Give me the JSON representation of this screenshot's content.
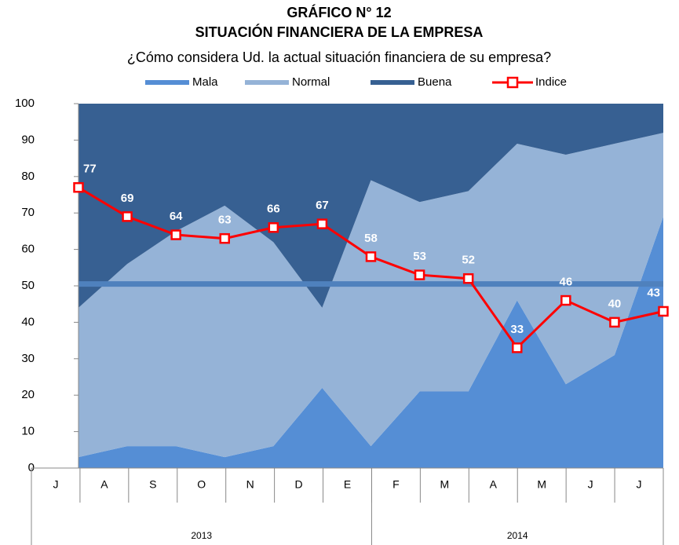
{
  "chart_data": {
    "type": "stacked_area_line",
    "title": "GRÁFICO N° 12",
    "subtitle": "SITUACIÓN FINANCIERA DE LA EMPRESA",
    "question": "¿Cómo considera Ud. la actual situación financiera de su empresa?",
    "categories": [
      "J",
      "A",
      "S",
      "O",
      "N",
      "D",
      "E",
      "F",
      "M",
      "A",
      "M",
      "J",
      "J"
    ],
    "x_groups": [
      {
        "label": "2013",
        "span": 7
      },
      {
        "label": "2014",
        "span": 6
      }
    ],
    "series": [
      {
        "name": "Mala",
        "color": "#558ed5",
        "values": [
          3,
          6,
          6,
          3,
          6,
          22,
          6,
          21,
          21,
          46,
          23,
          31,
          69
        ]
      },
      {
        "name": "Normal",
        "color": "#95b3d7",
        "values": [
          41,
          50,
          59,
          69,
          56,
          22,
          73,
          52,
          55,
          43,
          63,
          58,
          23
        ]
      },
      {
        "name": "Buena",
        "color": "#376092",
        "values": [
          56,
          44,
          35,
          28,
          38,
          56,
          21,
          27,
          24,
          11,
          14,
          11,
          8
        ]
      },
      {
        "name": "Indice",
        "color": "#ff0000",
        "type": "line",
        "values": [
          77,
          69,
          64,
          63,
          66,
          67,
          58,
          53,
          52,
          33,
          46,
          40,
          43
        ]
      }
    ],
    "reference_line": {
      "value": 50.5,
      "color": "#4f81bd"
    },
    "ylim": [
      0,
      100
    ],
    "yticks": [
      0,
      10,
      20,
      30,
      40,
      50,
      60,
      70,
      80,
      90,
      100
    ]
  }
}
